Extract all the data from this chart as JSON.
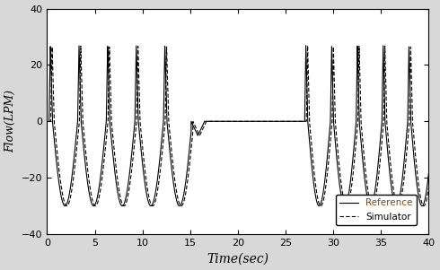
{
  "title": "",
  "xlabel": "Time(sec)",
  "ylabel": "Flow(LPM)",
  "xlim": [
    0,
    40
  ],
  "ylim": [
    -40,
    40
  ],
  "xticks": [
    0,
    5,
    10,
    15,
    20,
    25,
    30,
    35,
    40
  ],
  "yticks": [
    -40,
    -20,
    0,
    20,
    40
  ],
  "legend_labels": [
    "Reference",
    "Simulator"
  ],
  "ref_color": "#000000",
  "sim_color": "#000000",
  "background": "#ffffff",
  "fig_background": "#d8d8d8",
  "figsize": [
    4.9,
    3.01
  ],
  "dpi": 100,
  "peak_insp": 27,
  "trough_exp": -30,
  "breath_period1": 3.0,
  "breath_period2": 2.7,
  "phase1_start": 0.2,
  "phase1_end": 15.1,
  "apnea_start": 15.1,
  "apnea_end": 27.0,
  "phase3_start": 27.0,
  "phase3_end": 40.0,
  "sim_delay": 0.18
}
